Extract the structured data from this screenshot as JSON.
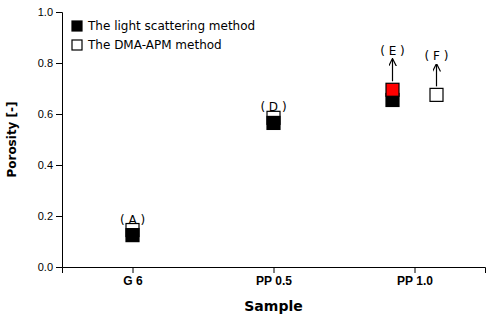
{
  "chart_data": {
    "type": "scatter",
    "xlabel": "Sample",
    "ylabel": "Porosity [-]",
    "categories": [
      "G 6",
      "PP 0.5",
      "PP 1.0"
    ],
    "series": [
      {
        "name": "The light scattering method",
        "color": "black",
        "marker": "square",
        "values": [
          0.125,
          0.565,
          0.655
        ]
      },
      {
        "name": "The DMA-APM method",
        "color": "white",
        "marker": "square",
        "values": [
          0.145,
          0.585,
          0.675
        ]
      },
      {
        "color": "red",
        "marker": "square",
        "values": [
          null,
          null,
          0.695
        ]
      }
    ],
    "annotations": [
      {
        "text": "( A )",
        "category": 0,
        "series": [
          0
        ]
      },
      {
        "text": "( D )",
        "category": 1,
        "series": [
          0
        ]
      },
      {
        "text": "( E )",
        "category": 2,
        "series": [
          0,
          2
        ],
        "arrow": true
      },
      {
        "text": "( F )",
        "category": 2,
        "series": [
          1
        ],
        "arrow": true
      }
    ],
    "ylim": [
      0,
      1.0
    ],
    "yticks": [
      {
        "value": 0,
        "label": "0.0"
      },
      0.2,
      0.4,
      0.6,
      0.8,
      {
        "value": 1.0,
        "label": "1.0"
      }
    ],
    "grid": false,
    "legend": "upper left"
  }
}
